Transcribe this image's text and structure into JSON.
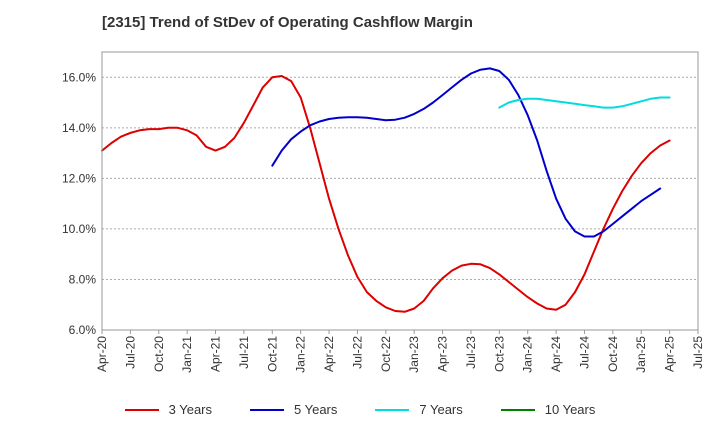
{
  "chart_data": {
    "type": "line",
    "title": "[2315]  Trend of StDev of Operating Cashflow Margin",
    "xlabel": "",
    "ylabel": "",
    "ylim": [
      6.0,
      17.0
    ],
    "yticks": [
      "6.0%",
      "8.0%",
      "10.0%",
      "12.0%",
      "14.0%",
      "16.0%"
    ],
    "ytick_values": [
      6,
      8,
      10,
      12,
      14,
      16
    ],
    "xticks": [
      "Apr-20",
      "Jul-20",
      "Oct-20",
      "Jan-21",
      "Apr-21",
      "Jul-21",
      "Oct-21",
      "Jan-22",
      "Apr-22",
      "Jul-22",
      "Oct-22",
      "Jan-23",
      "Apr-23",
      "Jul-23",
      "Oct-23",
      "Jan-24",
      "Apr-24",
      "Jul-24",
      "Oct-24",
      "Jan-25",
      "Apr-25",
      "Jul-25"
    ],
    "grid": "dashed-horizontal",
    "legend_position": "bottom",
    "series": [
      {
        "name": "3 Years",
        "color": "#dd0000",
        "start_index": 0,
        "values": [
          13.1,
          13.4,
          13.65,
          13.8,
          13.9,
          13.95,
          13.95,
          14.0,
          14.0,
          13.9,
          13.7,
          13.25,
          13.1,
          13.25,
          13.6,
          14.2,
          14.9,
          15.6,
          16.0,
          16.05,
          15.85,
          15.2,
          14.0,
          12.6,
          11.2,
          10.0,
          8.95,
          8.1,
          7.5,
          7.15,
          6.9,
          6.75,
          6.72,
          6.85,
          7.15,
          7.65,
          8.05,
          8.35,
          8.55,
          8.62,
          8.6,
          8.45,
          8.2,
          7.9,
          7.6,
          7.3,
          7.05,
          6.85,
          6.8,
          7.0,
          7.5,
          8.2,
          9.1,
          10.0,
          10.8,
          11.5,
          12.1,
          12.6,
          13.0,
          13.3,
          13.5
        ]
      },
      {
        "name": "5 Years",
        "color": "#0000cc",
        "start_index": 18,
        "values": [
          12.5,
          13.1,
          13.55,
          13.85,
          14.1,
          14.25,
          14.35,
          14.4,
          14.42,
          14.42,
          14.4,
          14.35,
          14.3,
          14.32,
          14.4,
          14.55,
          14.75,
          15.0,
          15.3,
          15.6,
          15.9,
          16.15,
          16.3,
          16.35,
          16.25,
          15.9,
          15.3,
          14.5,
          13.5,
          12.3,
          11.2,
          10.4,
          9.9,
          9.7,
          9.7,
          9.9,
          10.2,
          10.5,
          10.8,
          11.1,
          11.35,
          11.6
        ]
      },
      {
        "name": "7 Years",
        "color": "#00dddd",
        "start_index": 42,
        "values": [
          14.8,
          15.0,
          15.1,
          15.15,
          15.15,
          15.1,
          15.05,
          15.0,
          14.95,
          14.9,
          14.85,
          14.8,
          14.8,
          14.85,
          14.95,
          15.05,
          15.15,
          15.2,
          15.2
        ]
      },
      {
        "name": "10 Years",
        "color": "#008000",
        "start_index": 0,
        "values": []
      }
    ]
  }
}
